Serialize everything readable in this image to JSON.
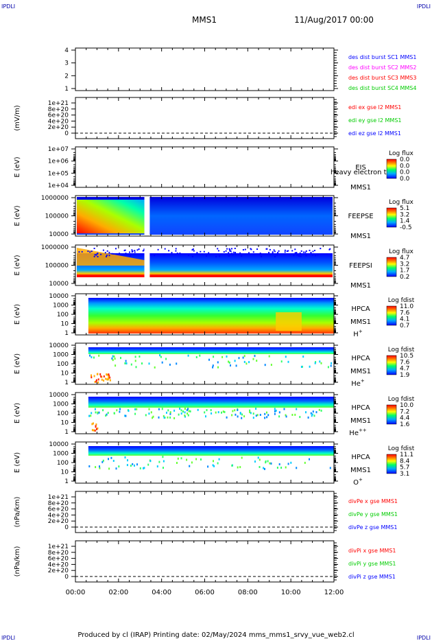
{
  "corner_marks": {
    "top_left": "IPDLI",
    "top_right": "IPDLI",
    "bottom_left": "IPDLI",
    "bottom_right": "IPDLI"
  },
  "header": {
    "mission": "MMS1",
    "date": "11/Aug/2017 00:00"
  },
  "footer": {
    "text": "Produced by cl (IRAP)   Printing date: 02/May/2024   mms_mms1_srvy_vue_web2.cl"
  },
  "colors": {
    "red": "#ff0000",
    "green": "#00cc00",
    "blue": "#0000ff",
    "magenta": "#ff00ff",
    "dash": "#000000"
  },
  "chart_data": {
    "type": "multi-panel time series",
    "x_ticks": [
      "00:00",
      "02:00",
      "04:00",
      "06:00",
      "08:00",
      "10:00",
      "12:00"
    ],
    "x_range_hours": [
      0,
      12
    ],
    "panels": [
      {
        "kind": "line",
        "ylabel": "",
        "yticks": [
          "4",
          "3",
          "2",
          "1"
        ],
        "ylim": [
          0.5,
          4.5
        ],
        "legend": [
          {
            "text": "des dist burst SC1 MMS1",
            "color": "#0000ff"
          },
          {
            "text": "des dist burst SC2 MMS2",
            "color": "#ff00ff"
          },
          {
            "text": "des dist burst SC3 MMS3",
            "color": "#ff0000"
          },
          {
            "text": "des dist burst SC4 MMS4",
            "color": "#00cc00"
          }
        ],
        "zero_line": false
      },
      {
        "kind": "line",
        "ylabel": "(mV/m)",
        "yticks": [
          "1e+21",
          "8e+20",
          "6e+20",
          "4e+20",
          "2e+20",
          "0"
        ],
        "ylim": [
          0,
          1e+21
        ],
        "legend": [
          {
            "text": "edi ex gse l2 MMS1",
            "color": "#ff0000"
          },
          {
            "text": "edi ey gse l2 MMS1",
            "color": "#00cc00"
          },
          {
            "text": "edi ez gse l2 MMS1",
            "color": "#0000ff"
          }
        ],
        "zero_line": true
      },
      {
        "kind": "spectrogram",
        "ylabel": "E (eV)",
        "yticks": [
          "1e+07",
          "1e+06",
          "1e+05",
          "1e+04"
        ],
        "ylim": [
          10000.0,
          10000000.0
        ],
        "log": true,
        "label": [
          "EIS",
          "MMS1"
        ],
        "overlay_text": "heavy electron to",
        "colorbar": {
          "title": "Log flux",
          "ticks": [
            "0.0",
            "0.0",
            "0.0",
            "0.0"
          ]
        },
        "data_gaps_hours": []
      },
      {
        "kind": "spectrogram",
        "ylabel": "E (eV)",
        "yticks": [
          "1000000",
          "100000",
          "10000"
        ],
        "ylim": [
          10000.0,
          1000000.0
        ],
        "log": true,
        "label": [
          "FEEPSE",
          "MMS1"
        ],
        "colorbar": {
          "title": "Log flux",
          "ticks": [
            "5.1",
            "3.2",
            "1.4",
            "-0.5"
          ]
        },
        "data_span_hours": [
          0,
          12
        ],
        "data_gaps_hours": [
          [
            3.2,
            3.45
          ]
        ]
      },
      {
        "kind": "spectrogram",
        "ylabel": "E (eV)",
        "yticks": [
          "1000000",
          "100000",
          "10000"
        ],
        "ylim": [
          10000.0,
          1000000.0
        ],
        "log": true,
        "label": [
          "FEEPSI",
          "MMS1"
        ],
        "colorbar": {
          "title": "Log flux",
          "ticks": [
            "4.7",
            "3.2",
            "1.7",
            "0.2"
          ]
        },
        "data_span_hours": [
          0,
          12
        ],
        "data_gaps_hours": [
          [
            3.2,
            3.45
          ]
        ]
      },
      {
        "kind": "spectrogram",
        "ylabel": "E (eV)",
        "yticks": [
          "10000",
          "1000",
          "100",
          "10",
          "1"
        ],
        "ylim": [
          1,
          30000.0
        ],
        "log": true,
        "label": [
          "HPCA",
          "MMS1",
          "H",
          "+"
        ],
        "colorbar": {
          "title": "Log fdist",
          "ticks": [
            "11.0",
            "7.6",
            "4.1",
            "0.7"
          ]
        },
        "data_span_hours": [
          0.6,
          12
        ]
      },
      {
        "kind": "spectrogram",
        "ylabel": "E (eV)",
        "yticks": [
          "10000",
          "1000",
          "100",
          "10",
          "1"
        ],
        "ylim": [
          1,
          30000.0
        ],
        "log": true,
        "label": [
          "HPCA",
          "MMS1",
          "He",
          "+"
        ],
        "colorbar": {
          "title": "Log fdist",
          "ticks": [
            "10.5",
            "7.6",
            "4.7",
            "1.9"
          ]
        },
        "data_span_hours": [
          0.6,
          12
        ]
      },
      {
        "kind": "spectrogram",
        "ylabel": "E (eV)",
        "yticks": [
          "10000",
          "1000",
          "100",
          "10",
          "1"
        ],
        "ylim": [
          1,
          30000.0
        ],
        "log": true,
        "label": [
          "HPCA",
          "MMS1",
          "He",
          "++"
        ],
        "colorbar": {
          "title": "Log fdist",
          "ticks": [
            "10.0",
            "7.2",
            "4.4",
            "1.6"
          ]
        },
        "data_span_hours": [
          0.6,
          12
        ]
      },
      {
        "kind": "spectrogram",
        "ylabel": "E (eV)",
        "yticks": [
          "10000",
          "1000",
          "100",
          "10",
          "1"
        ],
        "ylim": [
          1,
          30000.0
        ],
        "log": true,
        "label": [
          "HPCA",
          "MMS1",
          "O",
          "+"
        ],
        "colorbar": {
          "title": "Log fdist",
          "ticks": [
            "11.1",
            "8.4",
            "5.7",
            "3.1"
          ]
        },
        "data_span_hours": [
          0.6,
          12
        ]
      },
      {
        "kind": "line",
        "ylabel": "(nPa/km)",
        "yticks": [
          "1e+21",
          "8e+20",
          "6e+20",
          "4e+20",
          "2e+20",
          "0"
        ],
        "ylim": [
          0,
          1e+21
        ],
        "legend": [
          {
            "text": "divPe x gse MMS1",
            "color": "#ff0000"
          },
          {
            "text": "divPe y gse MMS1",
            "color": "#00cc00"
          },
          {
            "text": "divPe z gse MMS1",
            "color": "#0000ff"
          }
        ],
        "zero_line": true
      },
      {
        "kind": "line",
        "ylabel": "(nPa/km)",
        "yticks": [
          "1e+21",
          "8e+20",
          "6e+20",
          "4e+20",
          "2e+20",
          "0"
        ],
        "ylim": [
          0,
          1e+21
        ],
        "legend": [
          {
            "text": "divPi x gse MMS1",
            "color": "#ff0000"
          },
          {
            "text": "divPi y gse MMS1",
            "color": "#00cc00"
          },
          {
            "text": "divPi z gse MMS1",
            "color": "#0000ff"
          }
        ],
        "zero_line": true
      }
    ]
  }
}
